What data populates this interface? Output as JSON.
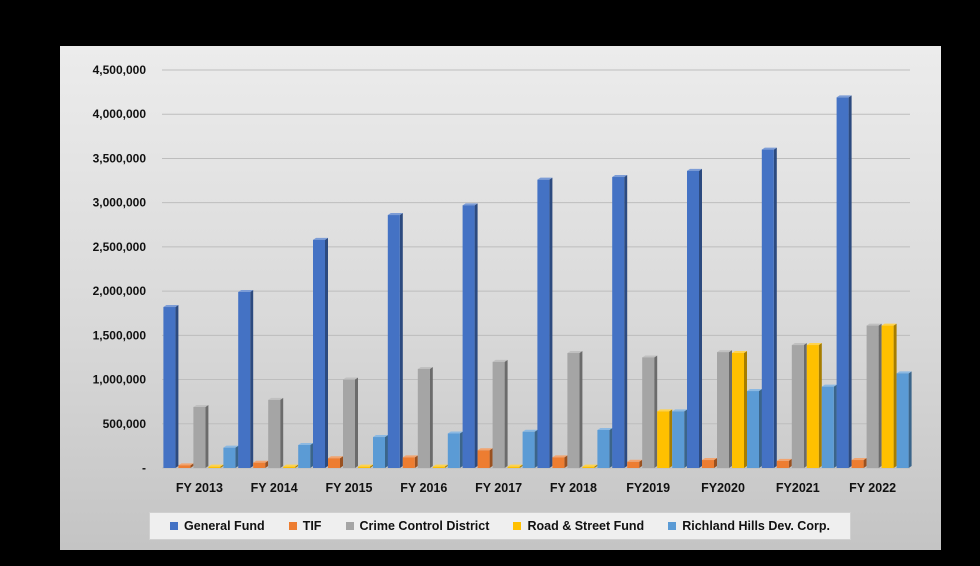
{
  "chart_data": {
    "type": "bar",
    "title": "",
    "xlabel": "",
    "ylabel": "",
    "ylim": [
      0,
      4500000
    ],
    "yticks": [
      0,
      500000,
      1000000,
      1500000,
      2000000,
      2500000,
      3000000,
      3500000,
      4000000,
      4500000
    ],
    "ytick_labels": [
      "-",
      "500,000",
      "1,000,000",
      "1,500,000",
      "2,000,000",
      "2,500,000",
      "3,000,000",
      "3,500,000",
      "4,000,000",
      "4,500,000"
    ],
    "grid": true,
    "legend_position": "bottom",
    "categories": [
      "FY 2013",
      "FY 2014",
      "FY 2015",
      "FY 2016",
      "FY 2017",
      "FY 2018",
      "FY2019",
      "FY2020",
      "FY2021",
      "FY 2022"
    ],
    "series": [
      {
        "name": "General Fund",
        "color": "#4472C4",
        "values": [
          1820000,
          1990000,
          2580000,
          2860000,
          2970000,
          3260000,
          3290000,
          3360000,
          3600000,
          4190000
        ]
      },
      {
        "name": "TIF",
        "color": "#ED7D31",
        "values": [
          30000,
          60000,
          110000,
          120000,
          200000,
          120000,
          70000,
          90000,
          80000,
          90000
        ]
      },
      {
        "name": "Crime Control District",
        "color": "#A5A5A5",
        "values": [
          690000,
          770000,
          1000000,
          1120000,
          1200000,
          1300000,
          1250000,
          1310000,
          1390000,
          1610000
        ]
      },
      {
        "name": "Road  & Street Fund",
        "color": "#FFC000",
        "values": [
          15000,
          15000,
          15000,
          15000,
          15000,
          15000,
          640000,
          1300000,
          1390000,
          1610000
        ]
      },
      {
        "name": "Richland Hills Dev. Corp.",
        "color": "#5B9BD5",
        "values": [
          230000,
          260000,
          350000,
          390000,
          410000,
          430000,
          640000,
          870000,
          920000,
          1070000
        ]
      }
    ]
  }
}
